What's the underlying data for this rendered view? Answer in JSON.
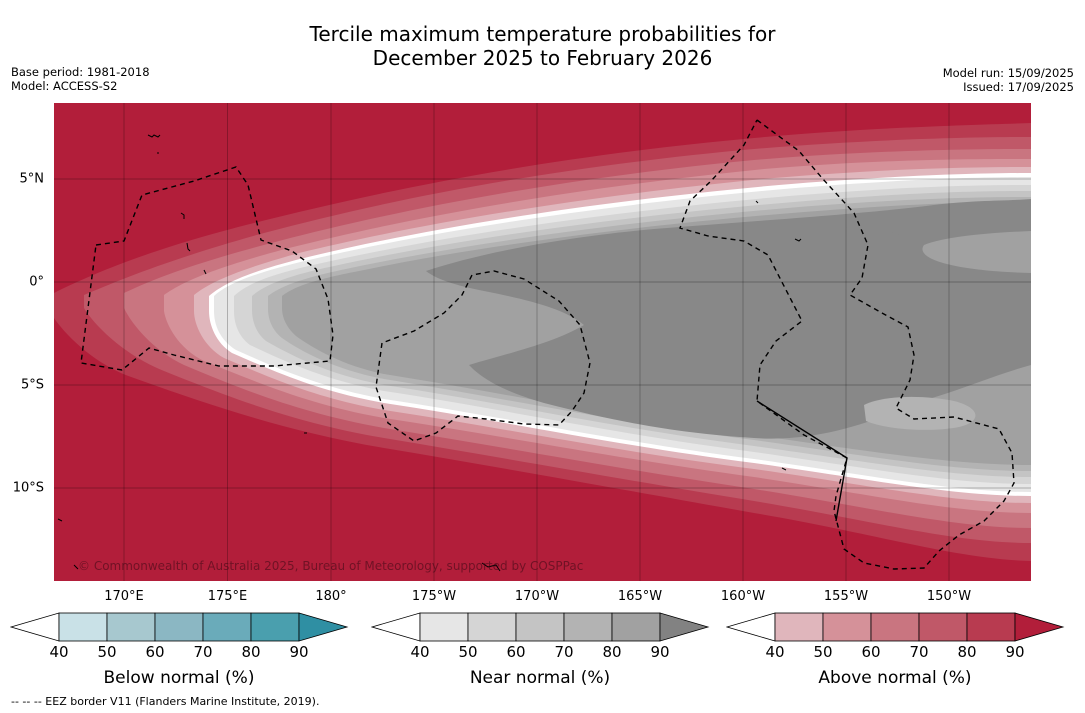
{
  "title": {
    "line1": "Tercile maximum temperature probabilities for",
    "line2": "December 2025 to February 2026"
  },
  "meta_left": {
    "base_period": "Base period: 1981-2018",
    "model": "Model: ACCESS-S2"
  },
  "meta_right": {
    "model_run": "Model run: 15/09/2025",
    "issued": "Issued: 17/09/2025"
  },
  "map": {
    "copyright": "© Commonwealth of Australia 2025, Bureau of Meteorology, supported by COSPPac",
    "lat_labels": [
      "5°N",
      "0°",
      "5°S",
      "10°S"
    ],
    "lon_labels": [
      "170°E",
      "175°E",
      "180°",
      "175°W",
      "170°W",
      "165°W",
      "160°W",
      "155°W",
      "150°W"
    ],
    "lon_range": [
      "167°E",
      "147°W"
    ],
    "lat_range": [
      "8.6°N",
      "14.4°S"
    ],
    "background_color": "#b21e3a",
    "near_normal_core_color": "#888888"
  },
  "colorbars": {
    "below": {
      "title": "Below normal (%)",
      "ticks": [
        "40",
        "50",
        "60",
        "70",
        "80",
        "90"
      ],
      "colors": [
        "#ffffff",
        "#c9e1e7",
        "#a7c8cf",
        "#8bb7c3",
        "#6aabba",
        "#4a9fae",
        "#2f8fa3"
      ]
    },
    "near": {
      "title": "Near normal (%)",
      "ticks": [
        "40",
        "50",
        "60",
        "70",
        "80",
        "90"
      ],
      "colors": [
        "#ffffff",
        "#e6e6e6",
        "#d5d5d5",
        "#c4c4c4",
        "#b3b3b3",
        "#a1a1a1",
        "#828282"
      ]
    },
    "above": {
      "title": "Above normal (%)",
      "ticks": [
        "40",
        "50",
        "60",
        "70",
        "80",
        "90"
      ],
      "colors": [
        "#ffffff",
        "#e0b6bc",
        "#d59199",
        "#c97580",
        "#c05868",
        "#b83b50",
        "#b21e3a"
      ]
    }
  },
  "footnote": "--  --  -- EEZ border V11 (Flanders Marine Institute, 2019)."
}
